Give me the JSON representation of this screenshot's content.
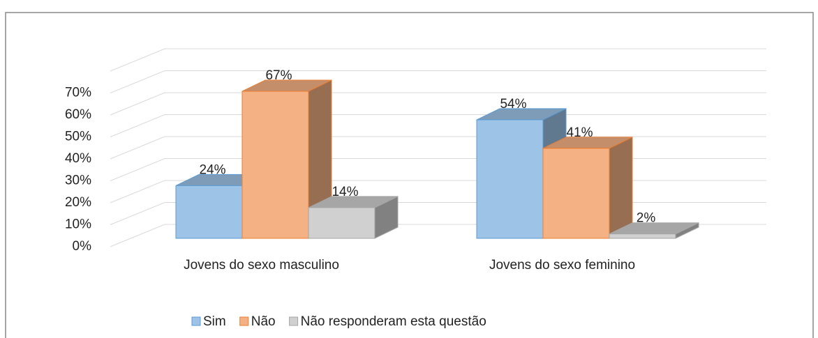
{
  "chart_data": {
    "type": "bar3d",
    "categories": [
      "Jovens do sexo masculino",
      "Jovens do sexo feminino"
    ],
    "series": [
      {
        "name": "Sim",
        "color": "#9dc3e6",
        "values": [
          24,
          54
        ],
        "value_labels": [
          "24%",
          "54%"
        ]
      },
      {
        "name": "Não",
        "color": "#f4b183",
        "values": [
          67,
          41
        ],
        "value_labels": [
          "67%",
          "41%"
        ]
      },
      {
        "name": "Não responderam esta questão",
        "color": "#d0d0d0",
        "values": [
          14,
          2
        ],
        "value_labels": [
          "14%",
          "2%"
        ]
      }
    ],
    "ylim": [
      0,
      80
    ],
    "yticks": [
      {
        "value": 0,
        "label": "0%"
      },
      {
        "value": 10,
        "label": "10%"
      },
      {
        "value": 20,
        "label": "20%"
      },
      {
        "value": 30,
        "label": "30%"
      },
      {
        "value": 40,
        "label": "40%"
      },
      {
        "value": 50,
        "label": "50%"
      },
      {
        "value": 60,
        "label": "60%"
      },
      {
        "value": 70,
        "label": "70%"
      }
    ],
    "grid": true,
    "legend": "bottom"
  }
}
